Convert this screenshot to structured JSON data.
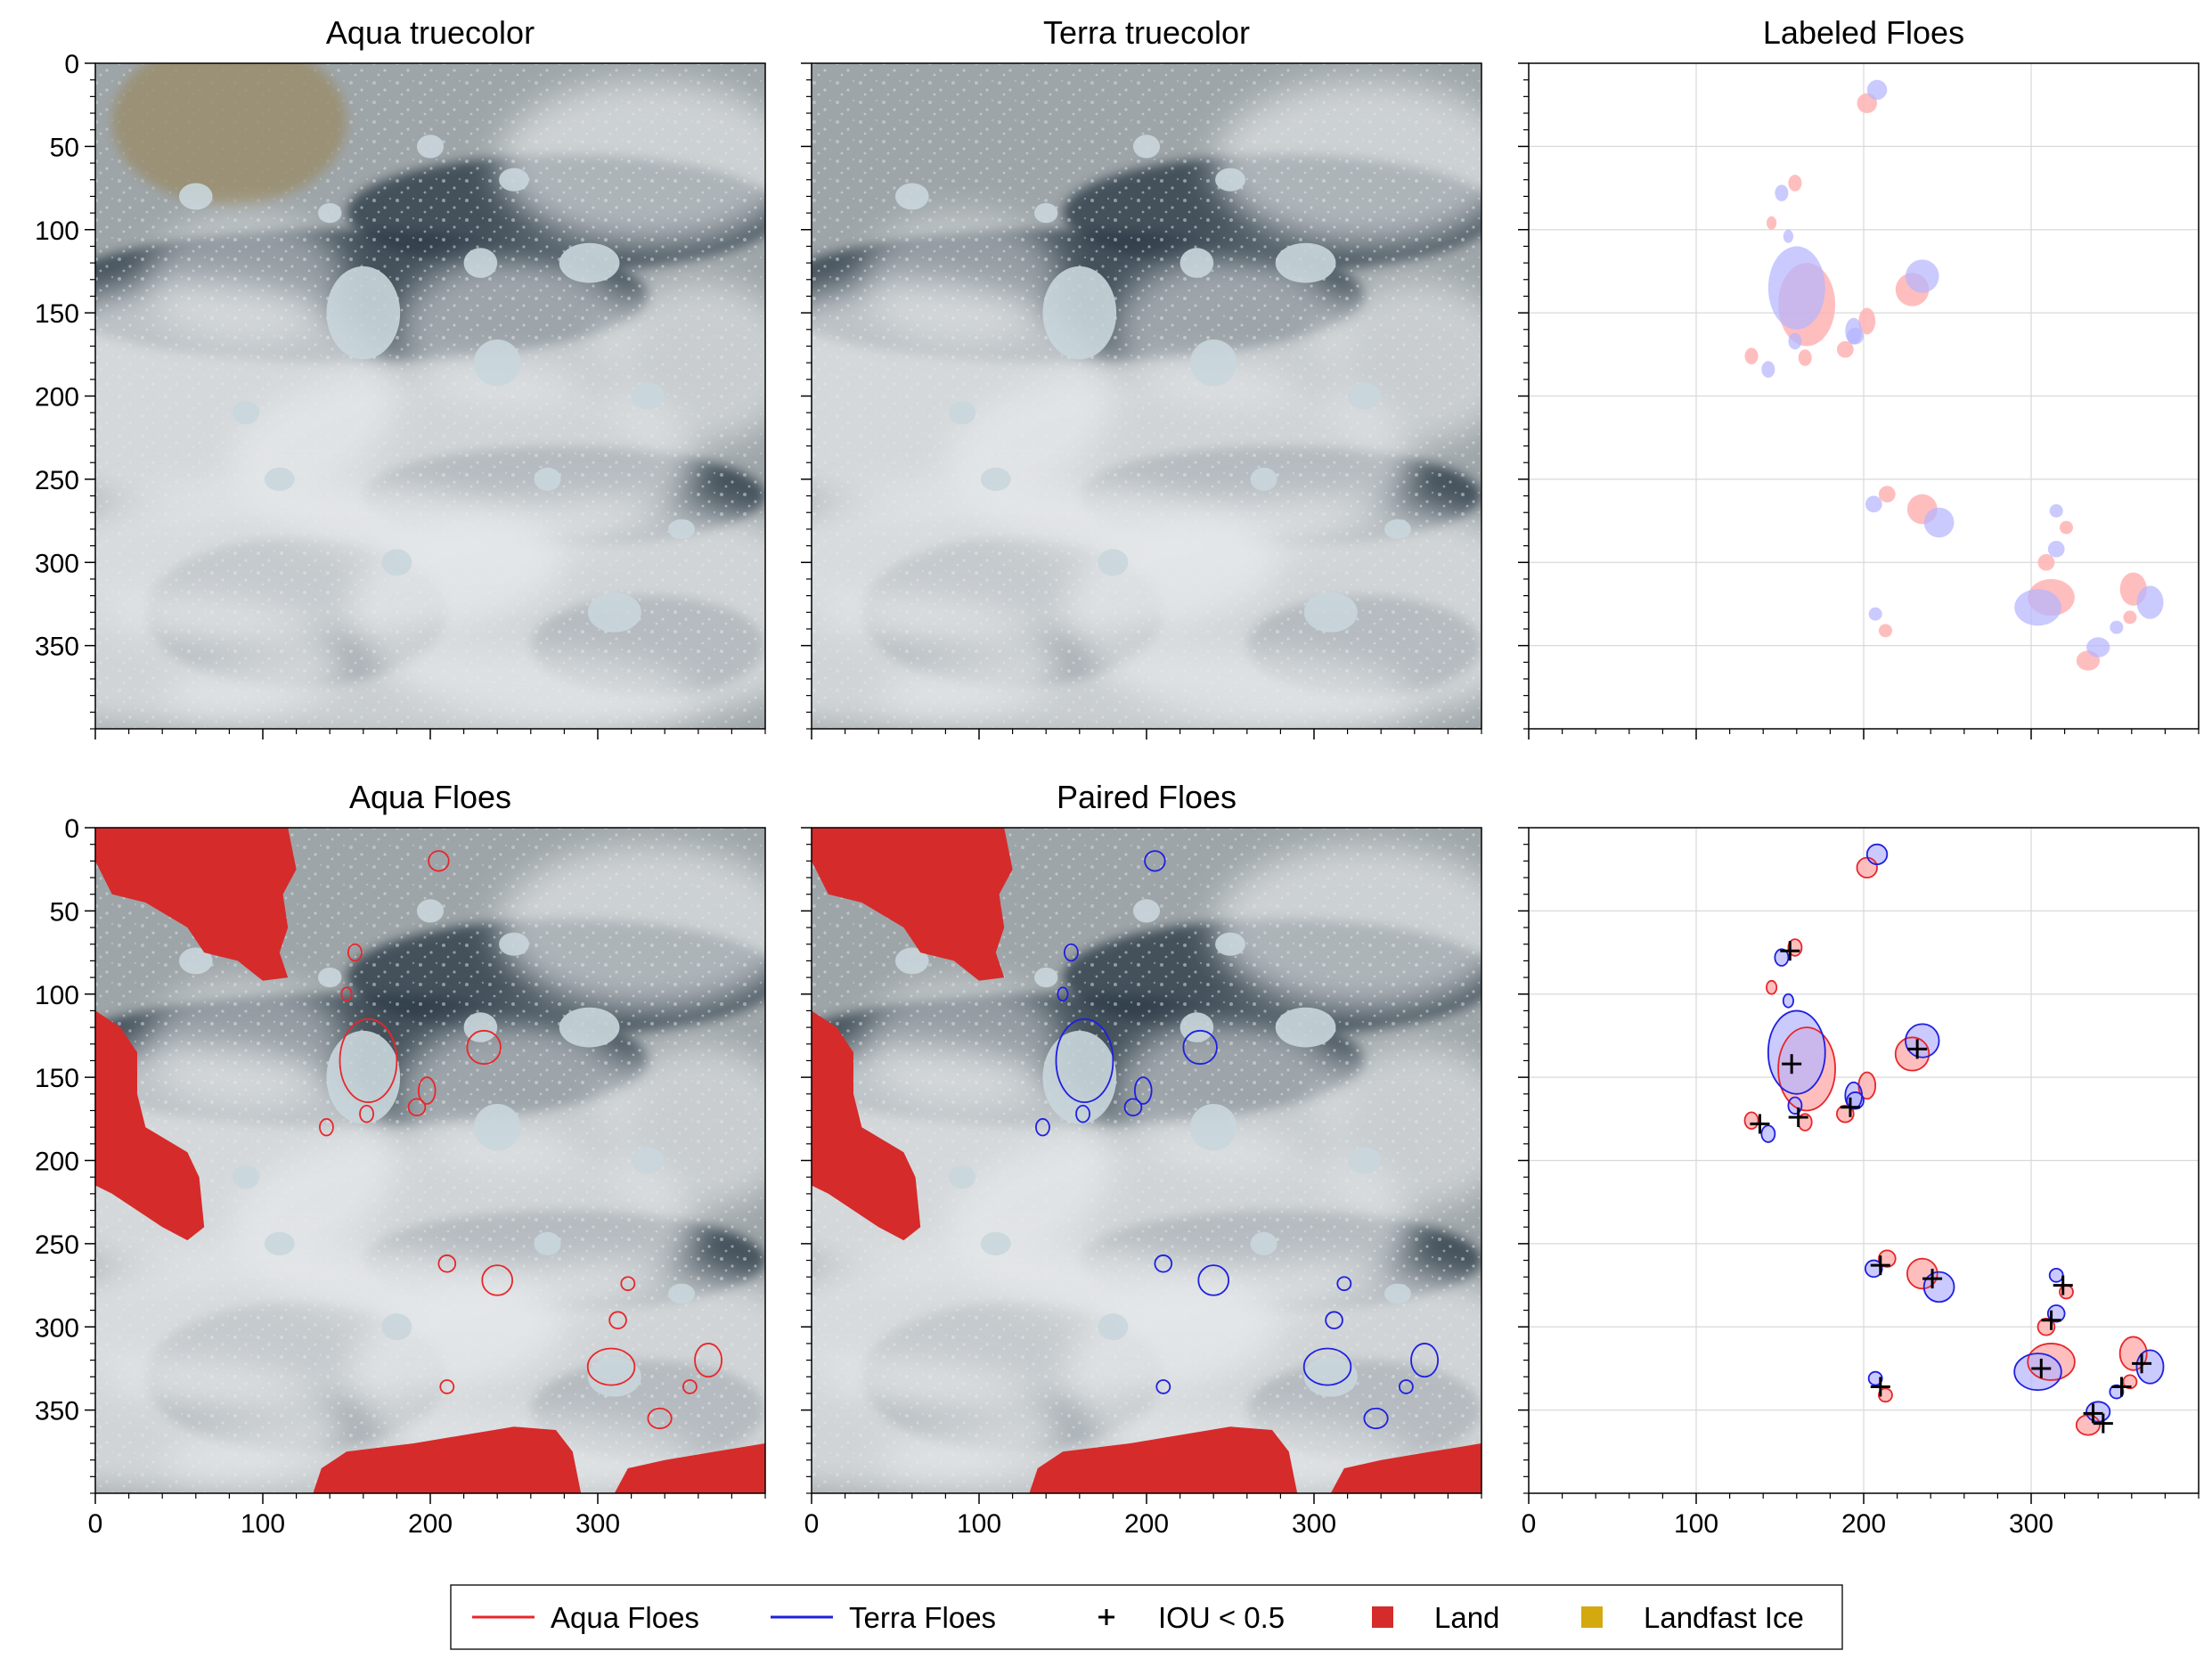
{
  "figure": {
    "panels": [
      {
        "id": "aqua-truecolor",
        "title": "Aqua truecolor",
        "kind": "satellite",
        "overlay": "none"
      },
      {
        "id": "terra-truecolor",
        "title": "Terra truecolor",
        "kind": "satellite",
        "overlay": "none"
      },
      {
        "id": "labeled-floes",
        "title": "Labeled Floes",
        "kind": "labels",
        "overlay": "none"
      },
      {
        "id": "aqua-floes",
        "title": "Aqua Floes",
        "kind": "satellite",
        "overlay": "aqua"
      },
      {
        "id": "paired-floes",
        "title": "Paired Floes",
        "kind": "satellite",
        "overlay": "terra"
      },
      {
        "id": "paired-labels",
        "title": "",
        "kind": "labels",
        "overlay": "pairs"
      }
    ],
    "legend": [
      {
        "label": "Aqua Floes",
        "symbol": "line",
        "color": "#e8262a"
      },
      {
        "label": "Terra Floes",
        "symbol": "line",
        "color": "#1f1fe0"
      },
      {
        "label": "IOU < 0.5",
        "symbol": "plus",
        "color": "#000000"
      },
      {
        "label": "Land",
        "symbol": "square",
        "color": "#d62b2b"
      },
      {
        "label": "Landfast Ice",
        "symbol": "square",
        "color": "#d4a90f"
      }
    ]
  },
  "chart_data": {
    "type": "image-grid",
    "rows": 2,
    "cols": 3,
    "x_ticks": [
      0,
      100,
      200,
      300
    ],
    "y_ticks": [
      0,
      50,
      100,
      150,
      200,
      250,
      300,
      350
    ],
    "xlim": [
      0,
      400
    ],
    "ylim": [
      400,
      0
    ],
    "colors": {
      "aqua": "#e8262a",
      "terra": "#1f1fe0",
      "aqua_fill": "#ffb3b3",
      "terra_fill": "#b3b3ff",
      "land": "#d62b2b",
      "landfast_ice": "#d4a90f"
    },
    "floes": [
      {
        "x": 205,
        "y": 20,
        "rx": 6,
        "ry": 6
      },
      {
        "x": 155,
        "y": 75,
        "rx": 4,
        "ry": 5
      },
      {
        "x": 150,
        "y": 100,
        "rx": 3,
        "ry": 4
      },
      {
        "x": 163,
        "y": 140,
        "rx": 17,
        "ry": 25
      },
      {
        "x": 232,
        "y": 132,
        "rx": 10,
        "ry": 10
      },
      {
        "x": 198,
        "y": 158,
        "rx": 5,
        "ry": 8
      },
      {
        "x": 138,
        "y": 180,
        "rx": 4,
        "ry": 5
      },
      {
        "x": 162,
        "y": 172,
        "rx": 4,
        "ry": 5
      },
      {
        "x": 192,
        "y": 168,
        "rx": 5,
        "ry": 5
      },
      {
        "x": 210,
        "y": 262,
        "rx": 5,
        "ry": 5
      },
      {
        "x": 240,
        "y": 272,
        "rx": 9,
        "ry": 9
      },
      {
        "x": 318,
        "y": 274,
        "rx": 4,
        "ry": 4
      },
      {
        "x": 312,
        "y": 296,
        "rx": 5,
        "ry": 5
      },
      {
        "x": 308,
        "y": 324,
        "rx": 14,
        "ry": 11
      },
      {
        "x": 366,
        "y": 320,
        "rx": 8,
        "ry": 10
      },
      {
        "x": 210,
        "y": 336,
        "rx": 4,
        "ry": 4
      },
      {
        "x": 337,
        "y": 355,
        "rx": 7,
        "ry": 6
      },
      {
        "x": 355,
        "y": 336,
        "rx": 4,
        "ry": 4
      }
    ],
    "iou_markers": [
      {
        "x": 156,
        "y": 74
      },
      {
        "x": 157,
        "y": 142
      },
      {
        "x": 232,
        "y": 133
      },
      {
        "x": 138,
        "y": 178
      },
      {
        "x": 161,
        "y": 174
      },
      {
        "x": 192,
        "y": 168
      },
      {
        "x": 210,
        "y": 263
      },
      {
        "x": 241,
        "y": 271
      },
      {
        "x": 319,
        "y": 275
      },
      {
        "x": 312,
        "y": 296
      },
      {
        "x": 306,
        "y": 325
      },
      {
        "x": 366,
        "y": 322
      },
      {
        "x": 210,
        "y": 336
      },
      {
        "x": 337,
        "y": 352
      },
      {
        "x": 343,
        "y": 358
      },
      {
        "x": 354,
        "y": 336
      }
    ]
  }
}
